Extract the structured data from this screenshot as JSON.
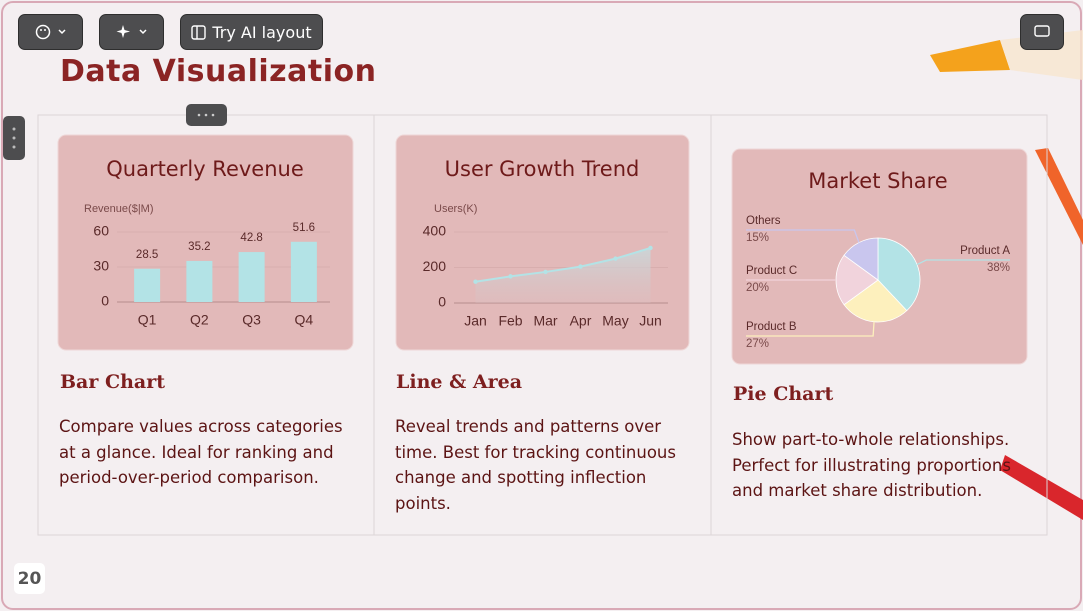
{
  "toolbar": {
    "ai_layout": "Try AI layout"
  },
  "slide": {
    "title": "Data Visualization",
    "page_number": 20
  },
  "cards": [
    {
      "heading": "Bar Chart",
      "description": "Compare values across categories at a glance. Ideal for ranking and period-over-period comparison."
    },
    {
      "heading": "Line & Area",
      "description": "Reveal trends and patterns over time. Best for tracking continuous change and spotting inflection points."
    },
    {
      "heading": "Pie Chart",
      "description": "Show part-to-whole relationships. Perfect for illustrating proportions and market share distribution."
    }
  ],
  "chart_data": [
    {
      "type": "bar",
      "title": "Quarterly Revenue",
      "y_label": "Revenue($|M)",
      "categories": [
        "Q1",
        "Q2",
        "Q3",
        "Q4"
      ],
      "values": [
        28.5,
        35.2,
        42.8,
        51.6
      ],
      "color": "#b3e3e6",
      "ylim": [
        0,
        60
      ],
      "yticks": [
        0,
        30,
        60
      ],
      "grid": true
    },
    {
      "type": "line",
      "title": "User Growth Trend",
      "y_label": "Users(K)",
      "categories": [
        "Jan",
        "Feb",
        "Mar",
        "Apr",
        "May",
        "Jun"
      ],
      "values": [
        120,
        150,
        175,
        205,
        250,
        310
      ],
      "color": "#b3e3e6",
      "ylim": [
        0,
        400
      ],
      "yticks": [
        0,
        200,
        400
      ],
      "grid": true
    },
    {
      "type": "pie",
      "title": "Market Share",
      "categories": [
        "Product A",
        "Product B",
        "Product C",
        "Others"
      ],
      "values": [
        38,
        27,
        20,
        15
      ],
      "value_labels": [
        "38%",
        "27%",
        "20%",
        "15%"
      ],
      "colors": [
        "#b3e3e6",
        "#fdf0bd",
        "#f1d3dc",
        "#c9c6ee"
      ]
    }
  ]
}
